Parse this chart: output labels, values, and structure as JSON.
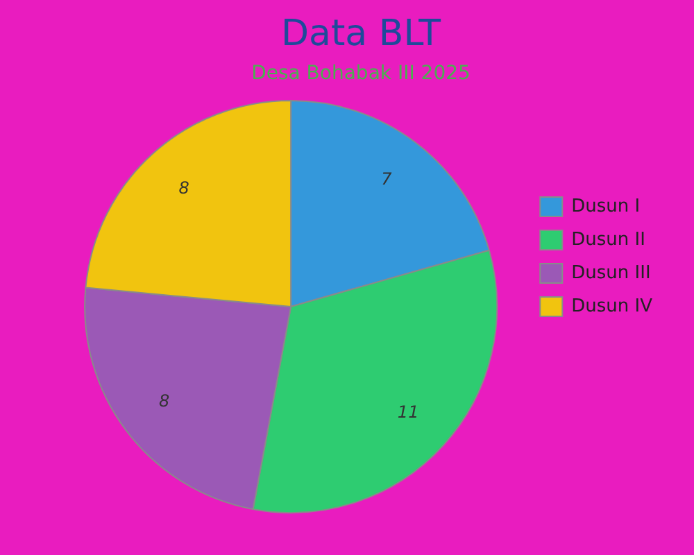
{
  "chart_data": {
    "type": "pie",
    "title": "Data BLT",
    "subtitle": "Desa Bohabak III 2025",
    "categories": [
      "Dusun I",
      "Dusun II",
      "Dusun III",
      "Dusun IV"
    ],
    "values": [
      7,
      11,
      8,
      8
    ],
    "colors": [
      "#3498db",
      "#2ecc71",
      "#9b59b6",
      "#f1c40f"
    ],
    "legend": "right",
    "data_labels": true
  }
}
